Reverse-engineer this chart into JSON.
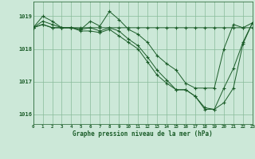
{
  "title": "Graphe pression niveau de la mer (hPa)",
  "background_color": "#cce8d8",
  "grid_color": "#88bb99",
  "line_color": "#1a5c28",
  "xlim": [
    0,
    23
  ],
  "ylim": [
    1015.7,
    1019.45
  ],
  "yticks": [
    1016,
    1017,
    1018,
    1019
  ],
  "xticks": [
    0,
    1,
    2,
    3,
    4,
    5,
    6,
    7,
    8,
    9,
    10,
    11,
    12,
    13,
    14,
    15,
    16,
    17,
    18,
    19,
    20,
    21,
    22,
    23
  ],
  "series": [
    [
      1018.65,
      1019.0,
      1018.85,
      1018.65,
      1018.65,
      1018.65,
      1018.65,
      1018.65,
      1018.65,
      1018.65,
      1018.65,
      1018.65,
      1018.65,
      1018.65,
      1018.65,
      1018.65,
      1018.65,
      1018.65,
      1018.65,
      1018.65,
      1018.65,
      1018.65,
      1018.65,
      1018.65
    ],
    [
      1018.65,
      1018.85,
      1018.75,
      1018.65,
      1018.65,
      1018.6,
      1018.85,
      1018.7,
      1019.15,
      1018.9,
      1018.6,
      1018.45,
      1018.2,
      1017.8,
      1017.55,
      1017.35,
      1016.95,
      1016.8,
      1016.8,
      1016.8,
      1018.0,
      1018.75,
      1018.65,
      1018.8
    ],
    [
      1018.65,
      1018.75,
      1018.65,
      1018.65,
      1018.65,
      1018.6,
      1018.65,
      1018.55,
      1018.65,
      1018.55,
      1018.3,
      1018.1,
      1017.75,
      1017.35,
      1017.05,
      1016.75,
      1016.75,
      1016.55,
      1016.2,
      1016.15,
      1016.8,
      1017.4,
      1018.2,
      1018.8
    ],
    [
      1018.65,
      1018.75,
      1018.65,
      1018.65,
      1018.65,
      1018.55,
      1018.55,
      1018.5,
      1018.6,
      1018.4,
      1018.2,
      1018.0,
      1017.6,
      1017.2,
      1016.95,
      1016.75,
      1016.75,
      1016.55,
      1016.15,
      1016.15,
      1016.35,
      1016.8,
      1018.15,
      1018.8
    ]
  ]
}
